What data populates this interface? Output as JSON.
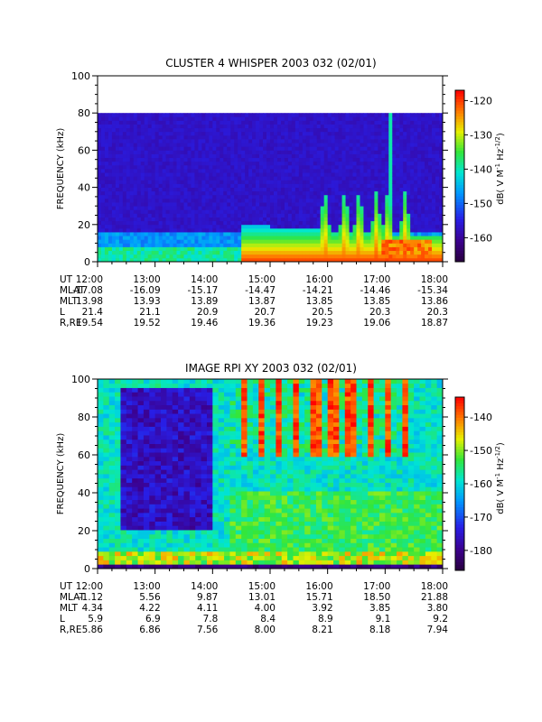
{
  "chart_data": [
    {
      "type": "heatmap",
      "title": "CLUSTER 4 WHISPER 2003 032 (02/01)",
      "ylabel": "FREQUENCY (kHz)",
      "ylim": [
        0,
        100
      ],
      "y_ticks": [
        "0",
        "20",
        "40",
        "60",
        "80",
        "100"
      ],
      "x_ticks": [
        "12:00",
        "13:00",
        "14:00",
        "15:00",
        "16:00",
        "17:00",
        "18:00"
      ],
      "x_hours": [
        12,
        13,
        14,
        15,
        16,
        17,
        18
      ],
      "data_fmax_khz": 80,
      "colorbar": {
        "label": "dB( V M",
        "sup1": "-1",
        "mid": " Hz",
        "sup2": "-1/2",
        "end": ")",
        "min": -167,
        "max": -117,
        "ticks": [
          "-120",
          "-130",
          "-140",
          "-150",
          "-160"
        ],
        "tick_values": [
          -120,
          -130,
          -140,
          -150,
          -160
        ]
      },
      "ephemeris": [
        {
          "label": "UT",
          "values": [
            "12:00",
            "13:00",
            "14:00",
            "15:00",
            "16:00",
            "17:00",
            "18:00"
          ]
        },
        {
          "label": "MLAT",
          "values": [
            "-17.08",
            "-16.09",
            "-15.17",
            "-14.47",
            "-14.21",
            "-14.46",
            "-15.34"
          ]
        },
        {
          "label": "MLT",
          "values": [
            "13.98",
            "13.93",
            "13.89",
            "13.87",
            "13.85",
            "13.85",
            "13.86"
          ]
        },
        {
          "label": "L",
          "values": [
            "21.4",
            "21.1",
            "20.9",
            "20.7",
            "20.5",
            "20.3",
            "20.3"
          ]
        },
        {
          "label": "R,RE",
          "values": [
            "19.54",
            "19.52",
            "19.46",
            "19.36",
            "19.23",
            "19.06",
            "18.87"
          ]
        }
      ]
    },
    {
      "type": "heatmap",
      "title": "IMAGE RPI XY 2003 032 (02/01)",
      "ylabel": "FREQUENCY (kHz)",
      "ylim": [
        0,
        100
      ],
      "y_ticks": [
        "0",
        "20",
        "40",
        "60",
        "80",
        "100"
      ],
      "x_ticks": [
        "12:00",
        "13:00",
        "14:00",
        "15:00",
        "16:00",
        "17:00",
        "18:00"
      ],
      "x_hours": [
        12,
        13,
        14,
        15,
        16,
        17,
        18
      ],
      "data_fmax_khz": 100,
      "colorbar": {
        "label": "dB( V M",
        "sup1": "-1",
        "mid": " Hz",
        "sup2": "-1/2",
        "end": ")",
        "min": -186,
        "max": -134,
        "ticks": [
          "-140",
          "-150",
          "-160",
          "-170",
          "-180"
        ],
        "tick_values": [
          -140,
          -150,
          -160,
          -170,
          -180
        ]
      },
      "ephemeris": [
        {
          "label": "UT",
          "values": [
            "12:00",
            "13:00",
            "14:00",
            "15:00",
            "16:00",
            "17:00",
            "18:00"
          ]
        },
        {
          "label": "MLAT",
          "values": [
            "-1.12",
            "5.56",
            "9.87",
            "13.01",
            "15.71",
            "18.50",
            "21.88"
          ]
        },
        {
          "label": "MLT",
          "values": [
            "4.34",
            "4.22",
            "4.11",
            "4.00",
            "3.92",
            "3.85",
            "3.80"
          ]
        },
        {
          "label": "L",
          "values": [
            "5.9",
            "6.9",
            "7.8",
            "8.4",
            "8.9",
            "9.1",
            "9.2"
          ]
        },
        {
          "label": "R,RE",
          "values": [
            "5.86",
            "6.86",
            "7.56",
            "8.00",
            "8.21",
            "8.18",
            "7.94"
          ]
        }
      ]
    }
  ]
}
